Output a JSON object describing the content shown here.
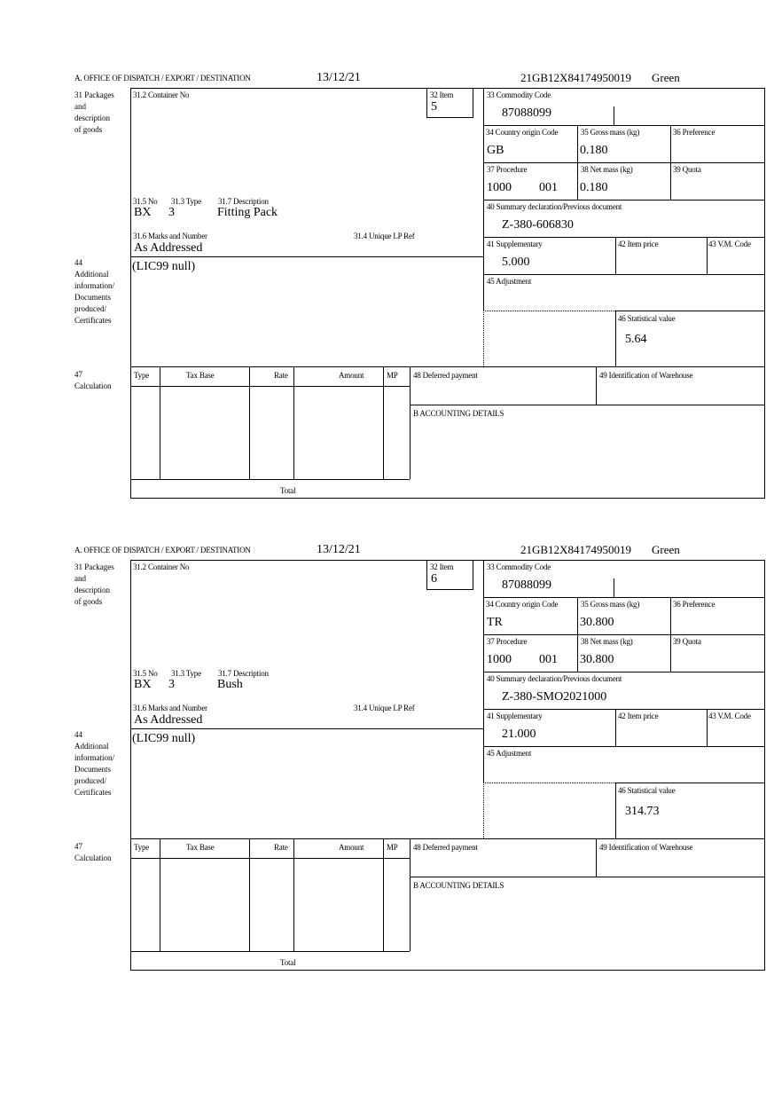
{
  "labels": {
    "office": "A.  OFFICE OF DISPATCH / EXPORT / DESTINATION",
    "packages": "31 Packages\nand\ndescription\nof goods",
    "container_no": "31.2 Container No",
    "item": "32 Item",
    "commodity_code": "33 Commodity Code",
    "country_origin": "34 Country origin Code",
    "gross_mass": "35 Gross mass (kg)",
    "preference": "36 Preference",
    "procedure": "37 Procedure",
    "net_mass": "38 Net mass (kg)",
    "quota": "39 Quota",
    "summary_declaration": "40 Summary declaration/Previous document",
    "supplementary": "41 Supplementary",
    "item_price": "42 Item price",
    "vm_code": "43 V.M. Code",
    "adjustment": "45 Adjustment",
    "statistical_value": "46 Statistical value",
    "no": "31.5 No",
    "type": "31.3 Type",
    "description": "31.7 Description",
    "marks_and_number": "31.6 Marks and Number",
    "unique_lp_ref": "31.4 Unique LP Ref",
    "additional_info": "44\nAdditional\ninformation/\nDocuments\nproduced/\nCertificates",
    "calculation": "47\nCalculation",
    "calc_type": "Type",
    "calc_tax_base": "Tax Base",
    "calc_rate": "Rate",
    "calc_amount": "Amount",
    "calc_mp": "MP",
    "deferred_payment": "48 Deferred payment",
    "warehouse": "49 Identification of Warehouse",
    "accounting": "B ACCOUNTING DETAILS",
    "total": "Total"
  },
  "forms": [
    {
      "date": "13/12/21",
      "reference": "21GB12X84174950019",
      "route": "Green",
      "item": "5",
      "commodity_code": "87088099",
      "country_origin": "GB",
      "gross_mass": "0.180",
      "procedure": "1000",
      "procedure_ext": "001",
      "net_mass": "0.180",
      "summary_declaration": "Z-380-606830",
      "supplementary": "5.000",
      "statistical_value": "5.64",
      "no": "BX",
      "type": "3",
      "description": "Fitting Pack",
      "marks": "As Addressed",
      "additional_info": "(LIC99 null)"
    },
    {
      "date": "13/12/21",
      "reference": "21GB12X84174950019",
      "route": "Green",
      "item": "6",
      "commodity_code": "87088099",
      "country_origin": "TR",
      "gross_mass": "30.800",
      "procedure": "1000",
      "procedure_ext": "001",
      "net_mass": "30.800",
      "summary_declaration": "Z-380-SMO2021000",
      "supplementary": "21.000",
      "statistical_value": "314.73",
      "no": "BX",
      "type": "3",
      "description": "Bush",
      "marks": "As Addressed",
      "additional_info": "(LIC99 null)"
    }
  ]
}
